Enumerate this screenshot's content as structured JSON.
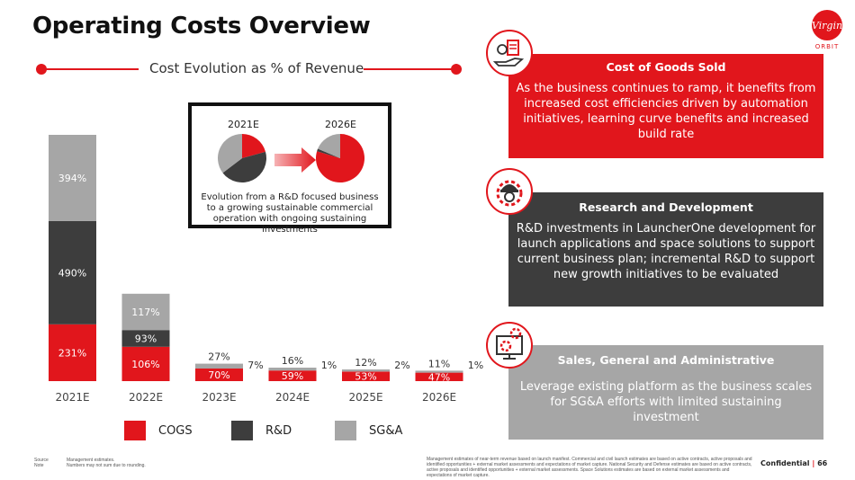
{
  "page": {
    "title": "Operating Costs Overview",
    "subtitle": "Cost Evolution as % of Revenue",
    "confidential": "Confidential",
    "page_number": "66",
    "logo_text": "Virgin",
    "logo_sub": "ORBIT",
    "source_label": "Source",
    "source_text": "Management estimates.",
    "note_label": "Note",
    "note_text": "Numbers may not sum due to rounding.",
    "disclaimer": "Management estimates of near-term revenue based on launch manifest. Commercial and civil launch estimates are based on active contracts, active proposals and identified opportunities + external market assessments and expectations of market capture. National Security and Defense estimates are based on active contracts, active proposals and identified opportunities + external market assessments. Space Solutions estimates are based on external market assessments and expectations of market capture."
  },
  "colors": {
    "cogs": "#e1161c",
    "rd": "#3d3d3d",
    "sga": "#a6a6a6",
    "accent": "#e1161c"
  },
  "chart_data": {
    "type": "bar",
    "stacked": true,
    "categories": [
      "2021E",
      "2022E",
      "2023E",
      "2024E",
      "2025E",
      "2026E"
    ],
    "series": [
      {
        "name": "COGS",
        "values": [
          231,
          106,
          70,
          59,
          53,
          47
        ],
        "labels": [
          "231%",
          "106%",
          "70%",
          "59%",
          "53%",
          "47%"
        ]
      },
      {
        "name": "R&D",
        "values": [
          490,
          93,
          7,
          1,
          2,
          1
        ],
        "labels": [
          "490%",
          "93%",
          "7%",
          "1%",
          "2%",
          "1%"
        ]
      },
      {
        "name": "SG&A",
        "values": [
          394,
          117,
          27,
          16,
          12,
          11
        ],
        "labels": [
          "394%",
          "117%",
          "27%",
          "16%",
          "12%",
          "11%"
        ]
      }
    ],
    "legend": [
      "COGS",
      "R&D",
      "SG&A"
    ],
    "legend_position": "bottom"
  },
  "inset": {
    "year_left": "2021E",
    "year_right": "2026E",
    "caption": "Evolution from a R&D focused business to a growing sustainable commercial operation with ongoing sustaining investments",
    "pie_2021": [
      231,
      490,
      394
    ],
    "pie_2026": [
      47,
      1,
      11
    ]
  },
  "panels": [
    {
      "title": "Cost of Goods Sold",
      "text": "As the business continues to ramp, it benefits from increased cost efficiencies driven by automation initiatives, learning curve benefits and increased build rate",
      "color": "#e1161c",
      "icon": "money-hand-icon"
    },
    {
      "title": "Research and Development",
      "text": "R&D investments in LauncherOne development for launch applications and space solutions to support current business plan; incremental R&D to support new growth initiatives to be evaluated",
      "color": "#3d3d3d",
      "icon": "engineer-gear-icon"
    },
    {
      "title": "Sales, General and Administrative",
      "text": "Leverage existing platform as the business scales for SG&A efforts with limited sustaining investment",
      "color": "#a6a6a6",
      "icon": "monitor-gears-icon"
    }
  ]
}
